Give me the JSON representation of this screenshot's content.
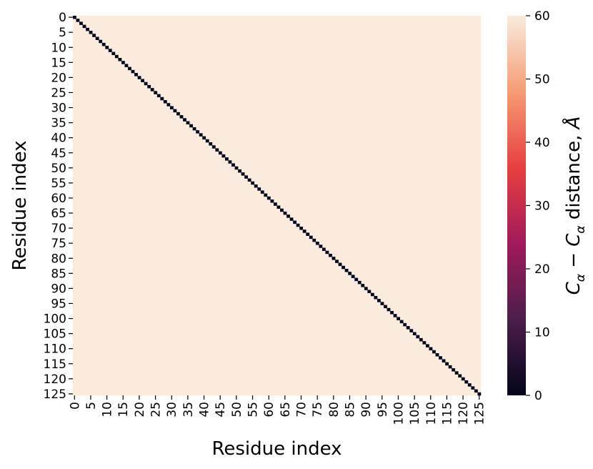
{
  "chart_data": {
    "type": "heatmap",
    "title": "",
    "xlabel": "Residue index",
    "ylabel": "Residue index",
    "n_residues": 126,
    "x_ticks": [
      0,
      5,
      10,
      15,
      20,
      25,
      30,
      35,
      40,
      45,
      50,
      55,
      60,
      65,
      70,
      75,
      80,
      85,
      90,
      95,
      100,
      105,
      110,
      115,
      120,
      125
    ],
    "y_ticks": [
      0,
      5,
      10,
      15,
      20,
      25,
      30,
      35,
      40,
      45,
      50,
      55,
      60,
      65,
      70,
      75,
      80,
      85,
      90,
      95,
      100,
      105,
      110,
      115,
      120,
      125
    ],
    "diagonal_value": 0,
    "off_diagonal_value": 60,
    "colorbar": {
      "label": "Cα − Cα distance, Å",
      "label_parts": {
        "c": "C",
        "alpha": "α",
        "minus": " − ",
        "suffix": " distance, ",
        "angstrom": "Å"
      },
      "range": [
        0,
        60
      ],
      "ticks": [
        0,
        10,
        20,
        30,
        40,
        50,
        60
      ],
      "colormap": "rocket",
      "colors": [
        "#03051a",
        "#4c1d4b",
        "#a11a5b",
        "#e83f3f",
        "#f69c73",
        "#faebdd"
      ]
    }
  }
}
